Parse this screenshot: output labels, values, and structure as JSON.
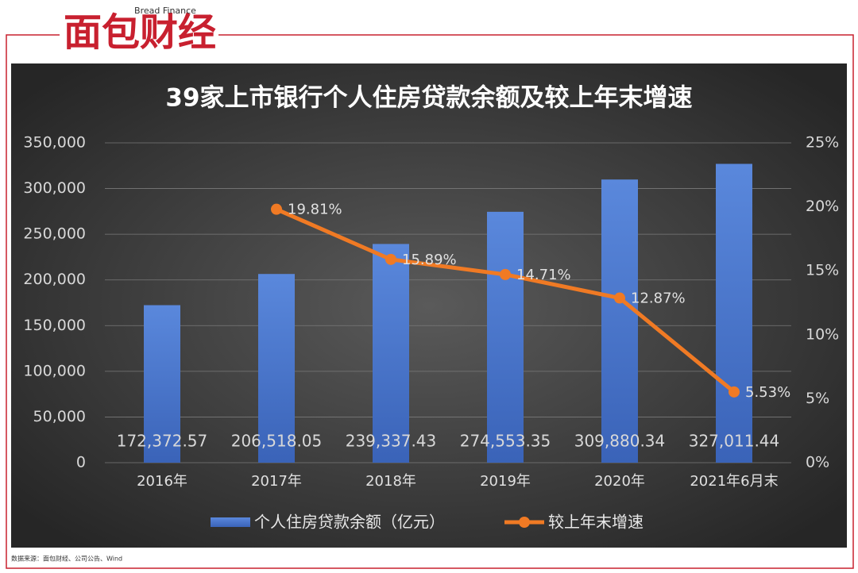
{
  "logo": {
    "text": "面包财经",
    "subtitle": "Bread Finance"
  },
  "source": "数据来源：面包财经、公司公告、Wind",
  "chart_data": {
    "type": "bar-line",
    "title": "39家上市银行个人住房贷款余额及较上年末增速",
    "categories": [
      "2016年",
      "2017年",
      "2018年",
      "2019年",
      "2020年",
      "2021年6月末"
    ],
    "series": [
      {
        "name": "个人住房贷款余额（亿元）",
        "color": "#4a78d0",
        "type": "bar",
        "values": [
          172372.57,
          206518.05,
          239337.43,
          274553.35,
          309880.34,
          327011.44
        ],
        "value_labels": [
          "172,372.57",
          "206,518.05",
          "239,337.43",
          "274,553.35",
          "309,880.34",
          "327,011.44"
        ]
      },
      {
        "name": "较上年末增速",
        "color": "#f07a24",
        "type": "line",
        "axis": "y2",
        "values": [
          null,
          19.81,
          15.89,
          14.71,
          12.87,
          5.53
        ],
        "value_labels": [
          null,
          "19.81%",
          "15.89%",
          "14.71%",
          "12.87%",
          "5.53%"
        ]
      }
    ],
    "ylim": [
      0,
      350000
    ],
    "yticks": [
      0,
      {
        "value": 50000,
        "label": "50,000"
      },
      {
        "value": 100000,
        "label": "100,000"
      },
      {
        "value": 150000,
        "label": "150,000"
      },
      {
        "value": 200000,
        "label": "200,000"
      },
      {
        "value": 250000,
        "label": "250,000"
      },
      {
        "value": 300000,
        "label": "300,000"
      },
      {
        "value": 350000,
        "label": "350,000"
      }
    ],
    "y2lim": [
      0,
      25
    ],
    "y2ticks": [
      {
        "value": 0,
        "label": "0%"
      },
      {
        "value": 5,
        "label": "5%"
      },
      {
        "value": 10,
        "label": "10%"
      },
      {
        "value": 15,
        "label": "15%"
      },
      {
        "value": 20,
        "label": "20%"
      },
      {
        "value": 25,
        "label": "25%"
      }
    ],
    "grid": true
  }
}
